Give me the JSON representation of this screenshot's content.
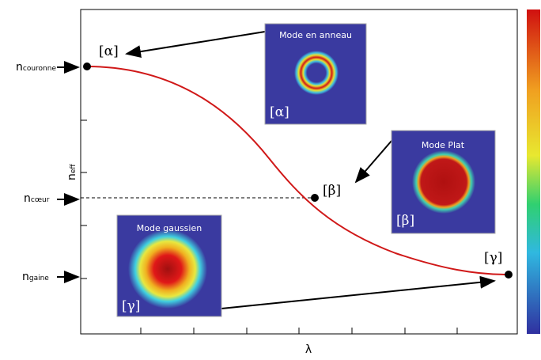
{
  "axes": {
    "y_label": {
      "main": "n",
      "sub": "eff"
    },
    "x_label": "λ"
  },
  "levels": [
    {
      "main": "n",
      "sub": "couronne"
    },
    {
      "main": "n",
      "sub": "cœur"
    },
    {
      "main": "n",
      "sub": "gaine"
    }
  ],
  "points": [
    "[α]",
    "[β]",
    "[γ]"
  ],
  "insets": [
    {
      "title": "Mode en anneau",
      "label": "[α]"
    },
    {
      "title": "Mode Plat",
      "label": "[β]"
    },
    {
      "title": "Mode gaussien",
      "label": "[γ]"
    }
  ]
}
